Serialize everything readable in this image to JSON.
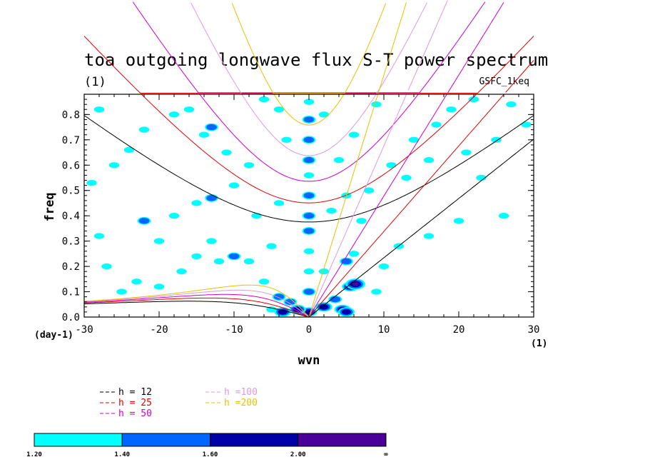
{
  "chart_data": {
    "type": "heatmap",
    "title": "toa outgoing longwave flux S-T power spectrum",
    "subtitle": "(1)",
    "source_label": "GSFC_1keq",
    "xlabel": "wvn",
    "ylabel": "freq",
    "xunit_label": "(1)",
    "yunit_label": "(day-1)",
    "xlim": [
      -30,
      30
    ],
    "ylim": [
      0,
      0.88
    ],
    "xticks": [
      -30,
      -20,
      -10,
      0,
      10,
      20,
      30
    ],
    "yticks": [
      0.0,
      0.1,
      0.2,
      0.3,
      0.4,
      0.5,
      0.6,
      0.7,
      0.8
    ],
    "xtick_labels": [
      "-30",
      "-20",
      "-10",
      "0",
      "10",
      "20",
      "30"
    ],
    "ytick_labels": [
      "0.0",
      "0.1",
      "0.2",
      "0.3",
      "0.4",
      "0.5",
      "0.6",
      "0.7",
      "0.8"
    ],
    "dispersion_curves": [
      {
        "name": "h = 12",
        "equivalent_depth": 12,
        "color": "#000000"
      },
      {
        "name": "h = 25",
        "equivalent_depth": 25,
        "color": "#dd0000"
      },
      {
        "name": "h = 50",
        "equivalent_depth": 50,
        "color": "#cc00cc"
      },
      {
        "name": "h =100",
        "equivalent_depth": 100,
        "color": "#dd99dd"
      },
      {
        "name": "h =200",
        "equivalent_depth": 200,
        "color": "#e8c000"
      }
    ],
    "colorbar": {
      "levels": [
        "1.20",
        "1.40",
        "1.60",
        "2.00",
        "∞"
      ],
      "colors": [
        "#00ffff",
        "#0066ff",
        "#0000a8",
        "#4b0099"
      ]
    },
    "contour_blobs": [
      {
        "x": 0,
        "y": 0.02,
        "level": 3
      },
      {
        "x": 0,
        "y": 0.1,
        "level": 2
      },
      {
        "x": 0,
        "y": 0.18,
        "level": 1
      },
      {
        "x": 0,
        "y": 0.26,
        "level": 1
      },
      {
        "x": 0,
        "y": 0.34,
        "level": 2
      },
      {
        "x": 0,
        "y": 0.4,
        "level": 2
      },
      {
        "x": 0,
        "y": 0.48,
        "level": 2
      },
      {
        "x": 0,
        "y": 0.56,
        "level": 1
      },
      {
        "x": 0,
        "y": 0.62,
        "level": 2
      },
      {
        "x": 0,
        "y": 0.7,
        "level": 2
      },
      {
        "x": 0,
        "y": 0.78,
        "level": 2
      },
      {
        "x": 0,
        "y": 0.85,
        "level": 1
      },
      {
        "x": 5.5,
        "y": 0.12,
        "level": 3
      },
      {
        "x": 6.2,
        "y": 0.13,
        "level": 4
      },
      {
        "x": 5.0,
        "y": 0.22,
        "level": 2
      },
      {
        "x": 6.0,
        "y": 0.25,
        "level": 1
      },
      {
        "x": 3.5,
        "y": 0.07,
        "level": 2
      },
      {
        "x": 4.5,
        "y": 0.03,
        "level": 3
      },
      {
        "x": 2.0,
        "y": 0.04,
        "level": 3
      },
      {
        "x": 5.0,
        "y": 0.02,
        "level": 3
      },
      {
        "x": -1.5,
        "y": 0.03,
        "level": 3
      },
      {
        "x": -2.5,
        "y": 0.06,
        "level": 2
      },
      {
        "x": -3.5,
        "y": 0.02,
        "level": 3
      },
      {
        "x": -4.0,
        "y": 0.08,
        "level": 2
      },
      {
        "x": -5.0,
        "y": 0.03,
        "level": 1
      },
      {
        "x": -6.0,
        "y": 0.14,
        "level": 1
      },
      {
        "x": -8.0,
        "y": 0.22,
        "level": 1
      },
      {
        "x": -10.0,
        "y": 0.24,
        "level": 2
      },
      {
        "x": -12.0,
        "y": 0.22,
        "level": 1
      },
      {
        "x": -13.0,
        "y": 0.3,
        "level": 1
      },
      {
        "x": -15.0,
        "y": 0.24,
        "level": 1
      },
      {
        "x": -17.0,
        "y": 0.18,
        "level": 1
      },
      {
        "x": -20.0,
        "y": 0.12,
        "level": 1
      },
      {
        "x": -23.0,
        "y": 0.14,
        "level": 1
      },
      {
        "x": -25.0,
        "y": 0.1,
        "level": 1
      },
      {
        "x": -27.0,
        "y": 0.2,
        "level": 1
      },
      {
        "x": -28.0,
        "y": 0.32,
        "level": 1
      },
      {
        "x": -20.0,
        "y": 0.3,
        "level": 1
      },
      {
        "x": -22.0,
        "y": 0.38,
        "level": 2
      },
      {
        "x": -18.0,
        "y": 0.4,
        "level": 1
      },
      {
        "x": -15.0,
        "y": 0.45,
        "level": 1
      },
      {
        "x": -13.0,
        "y": 0.47,
        "level": 2
      },
      {
        "x": -10.0,
        "y": 0.52,
        "level": 1
      },
      {
        "x": -8.0,
        "y": 0.6,
        "level": 1
      },
      {
        "x": -11.0,
        "y": 0.65,
        "level": 1
      },
      {
        "x": -13.0,
        "y": 0.75,
        "level": 2
      },
      {
        "x": -14.0,
        "y": 0.72,
        "level": 1
      },
      {
        "x": -16.0,
        "y": 0.82,
        "level": 1
      },
      {
        "x": -18.0,
        "y": 0.8,
        "level": 1
      },
      {
        "x": -22.0,
        "y": 0.74,
        "level": 1
      },
      {
        "x": -24.0,
        "y": 0.66,
        "level": 1
      },
      {
        "x": -26.0,
        "y": 0.6,
        "level": 1
      },
      {
        "x": -28.0,
        "y": 0.82,
        "level": 1
      },
      {
        "x": -29.0,
        "y": 0.53,
        "level": 1
      },
      {
        "x": -6.0,
        "y": 0.86,
        "level": 1
      },
      {
        "x": -4.0,
        "y": 0.82,
        "level": 1
      },
      {
        "x": -3.0,
        "y": 0.7,
        "level": 1
      },
      {
        "x": -7.0,
        "y": 0.4,
        "level": 1
      },
      {
        "x": -4.0,
        "y": 0.45,
        "level": 1
      },
      {
        "x": -5.0,
        "y": 0.28,
        "level": 1
      },
      {
        "x": 3.0,
        "y": 0.42,
        "level": 1
      },
      {
        "x": 5.0,
        "y": 0.48,
        "level": 1
      },
      {
        "x": 8.0,
        "y": 0.5,
        "level": 1
      },
      {
        "x": 11.0,
        "y": 0.6,
        "level": 1
      },
      {
        "x": 13.0,
        "y": 0.55,
        "level": 1
      },
      {
        "x": 14.0,
        "y": 0.7,
        "level": 1
      },
      {
        "x": 17.0,
        "y": 0.76,
        "level": 1
      },
      {
        "x": 19.0,
        "y": 0.82,
        "level": 1
      },
      {
        "x": 21.0,
        "y": 0.65,
        "level": 1
      },
      {
        "x": 23.0,
        "y": 0.55,
        "level": 1
      },
      {
        "x": 25.0,
        "y": 0.7,
        "level": 1
      },
      {
        "x": 27.0,
        "y": 0.84,
        "level": 1
      },
      {
        "x": 26.0,
        "y": 0.4,
        "level": 1
      },
      {
        "x": 20.0,
        "y": 0.38,
        "level": 1
      },
      {
        "x": 16.0,
        "y": 0.32,
        "level": 1
      },
      {
        "x": 12.0,
        "y": 0.28,
        "level": 1
      },
      {
        "x": 10.0,
        "y": 0.2,
        "level": 1
      },
      {
        "x": 9.0,
        "y": 0.1,
        "level": 1
      },
      {
        "x": 7.0,
        "y": 0.38,
        "level": 1
      },
      {
        "x": 4.0,
        "y": 0.62,
        "level": 1
      },
      {
        "x": 6.0,
        "y": 0.72,
        "level": 1
      },
      {
        "x": 9.0,
        "y": 0.84,
        "level": 1
      },
      {
        "x": 2.0,
        "y": 0.8,
        "level": 1
      },
      {
        "x": 2.0,
        "y": 0.18,
        "level": 1
      },
      {
        "x": 16.0,
        "y": 0.62,
        "level": 1
      },
      {
        "x": 22.0,
        "y": 0.86,
        "level": 1
      },
      {
        "x": 29.0,
        "y": 0.76,
        "level": 1
      }
    ]
  }
}
